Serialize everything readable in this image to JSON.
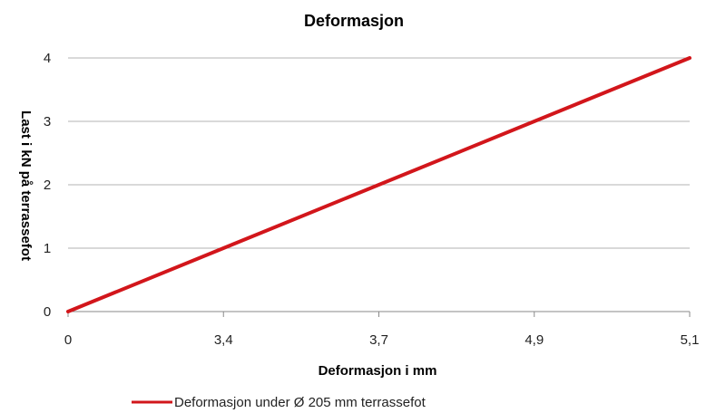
{
  "chart_data": {
    "type": "line",
    "title": "Deformasjon",
    "xlabel": "Deformasjon i mm",
    "ylabel": "Last i kN på terrassefot",
    "categories": [
      "0",
      "3,4",
      "3,7",
      "4,9",
      "5,1"
    ],
    "series": [
      {
        "name": "Deformasjon under Ø 205 mm terrassefot",
        "values": [
          0,
          1,
          2,
          3,
          4
        ],
        "color": "#d2161b"
      }
    ],
    "ylim": [
      0,
      4
    ],
    "yticks": [
      "0",
      "1",
      "2",
      "3",
      "4"
    ],
    "grid": true,
    "legend_position": "bottom"
  }
}
